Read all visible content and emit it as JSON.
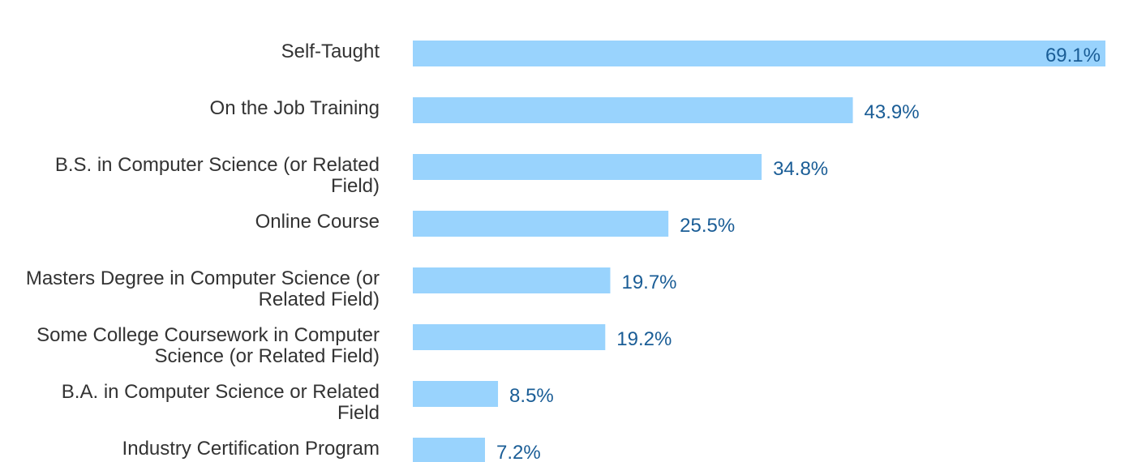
{
  "chart_data": {
    "type": "bar",
    "orientation": "horizontal",
    "categories": [
      "Self-Taught",
      "On the Job Training",
      "B.S. in Computer Science (or Related Field)",
      "Online Course",
      "Masters Degree in Computer Science (or Related Field)",
      "Some College Coursework in Computer Science (or Related Field)",
      "B.A. in Computer Science or Related Field",
      "Industry Certification Program"
    ],
    "values": [
      69.1,
      43.9,
      34.8,
      25.5,
      19.7,
      19.2,
      8.5,
      7.2
    ],
    "value_labels": [
      "69.1%",
      "43.9%",
      "34.8%",
      "25.5%",
      "19.7%",
      "19.2%",
      "8.5%",
      "7.2%"
    ],
    "title": "",
    "xlabel": "",
    "ylabel": "",
    "xlim": [
      0,
      69.1
    ],
    "grid": false,
    "legend": "none",
    "colors": {
      "bar": "#99d3fd",
      "value_label": "#1a5d96",
      "category_label": "#333333"
    }
  }
}
